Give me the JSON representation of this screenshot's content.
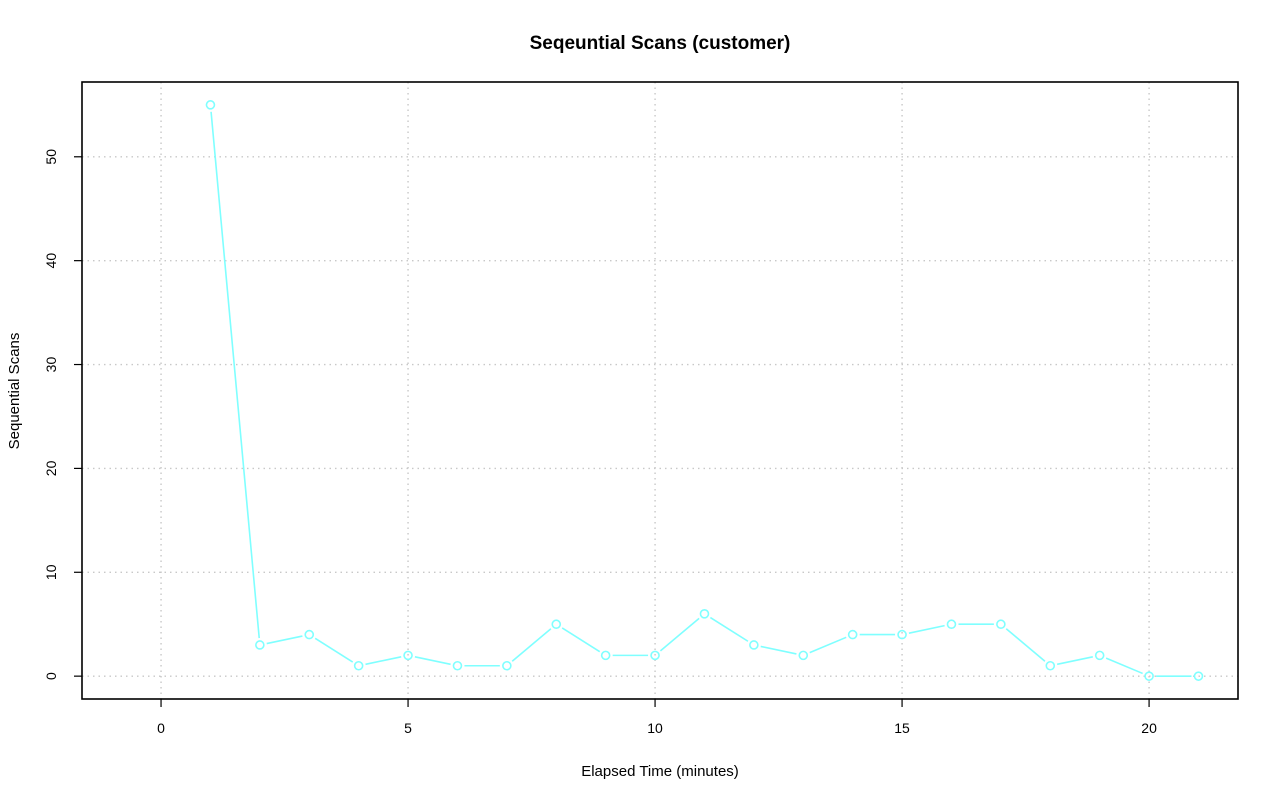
{
  "chart_data": {
    "type": "line",
    "title": "Seqeuntial Scans (customer)",
    "xlabel": "Elapsed Time (minutes)",
    "ylabel": "Sequential Scans",
    "xlim": [
      -1.6,
      21.8
    ],
    "ylim": [
      -2.2,
      57.2
    ],
    "xticks": [
      0,
      5,
      10,
      15,
      20
    ],
    "yticks": [
      0,
      10,
      20,
      30,
      40,
      50
    ],
    "grid": true,
    "color": "#7fffff",
    "series": [
      {
        "x": [
          1,
          2,
          3,
          4,
          5,
          6,
          7,
          8,
          9,
          10,
          11,
          12,
          13,
          14,
          15,
          16,
          17,
          18,
          19,
          20,
          21
        ],
        "values": [
          55,
          3,
          4,
          1,
          2,
          1,
          1,
          5,
          2,
          2,
          6,
          3,
          2,
          4,
          4,
          5,
          5,
          1,
          2,
          0,
          0
        ]
      }
    ]
  }
}
